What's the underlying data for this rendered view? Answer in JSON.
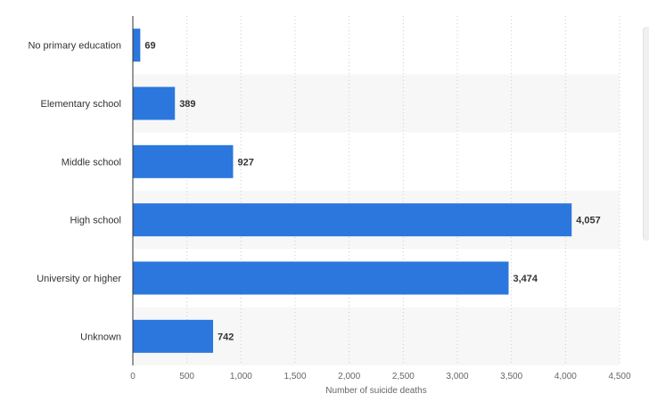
{
  "chart_data": {
    "type": "bar",
    "orientation": "horizontal",
    "categories": [
      "No primary education",
      "Elementary school",
      "Middle school",
      "High school",
      "University or higher",
      "Unknown"
    ],
    "values": [
      69,
      389,
      927,
      4057,
      3474,
      742
    ],
    "value_labels": [
      "69",
      "389",
      "927",
      "4,057",
      "3,474",
      "742"
    ],
    "xlabel": "Number of suicide deaths",
    "ylabel": "",
    "xlim": [
      0,
      4500
    ],
    "x_ticks": [
      0,
      500,
      1000,
      1500,
      2000,
      2500,
      3000,
      3500,
      4000,
      4500
    ],
    "x_tick_labels": [
      "0",
      "500",
      "1,000",
      "1,500",
      "2,000",
      "2,500",
      "3,000",
      "3,500",
      "4,000",
      "4,500"
    ],
    "grid": "vertical dotted",
    "legend": "none",
    "bar_color": "#2b77de",
    "band_color": "#f7f7f7"
  }
}
